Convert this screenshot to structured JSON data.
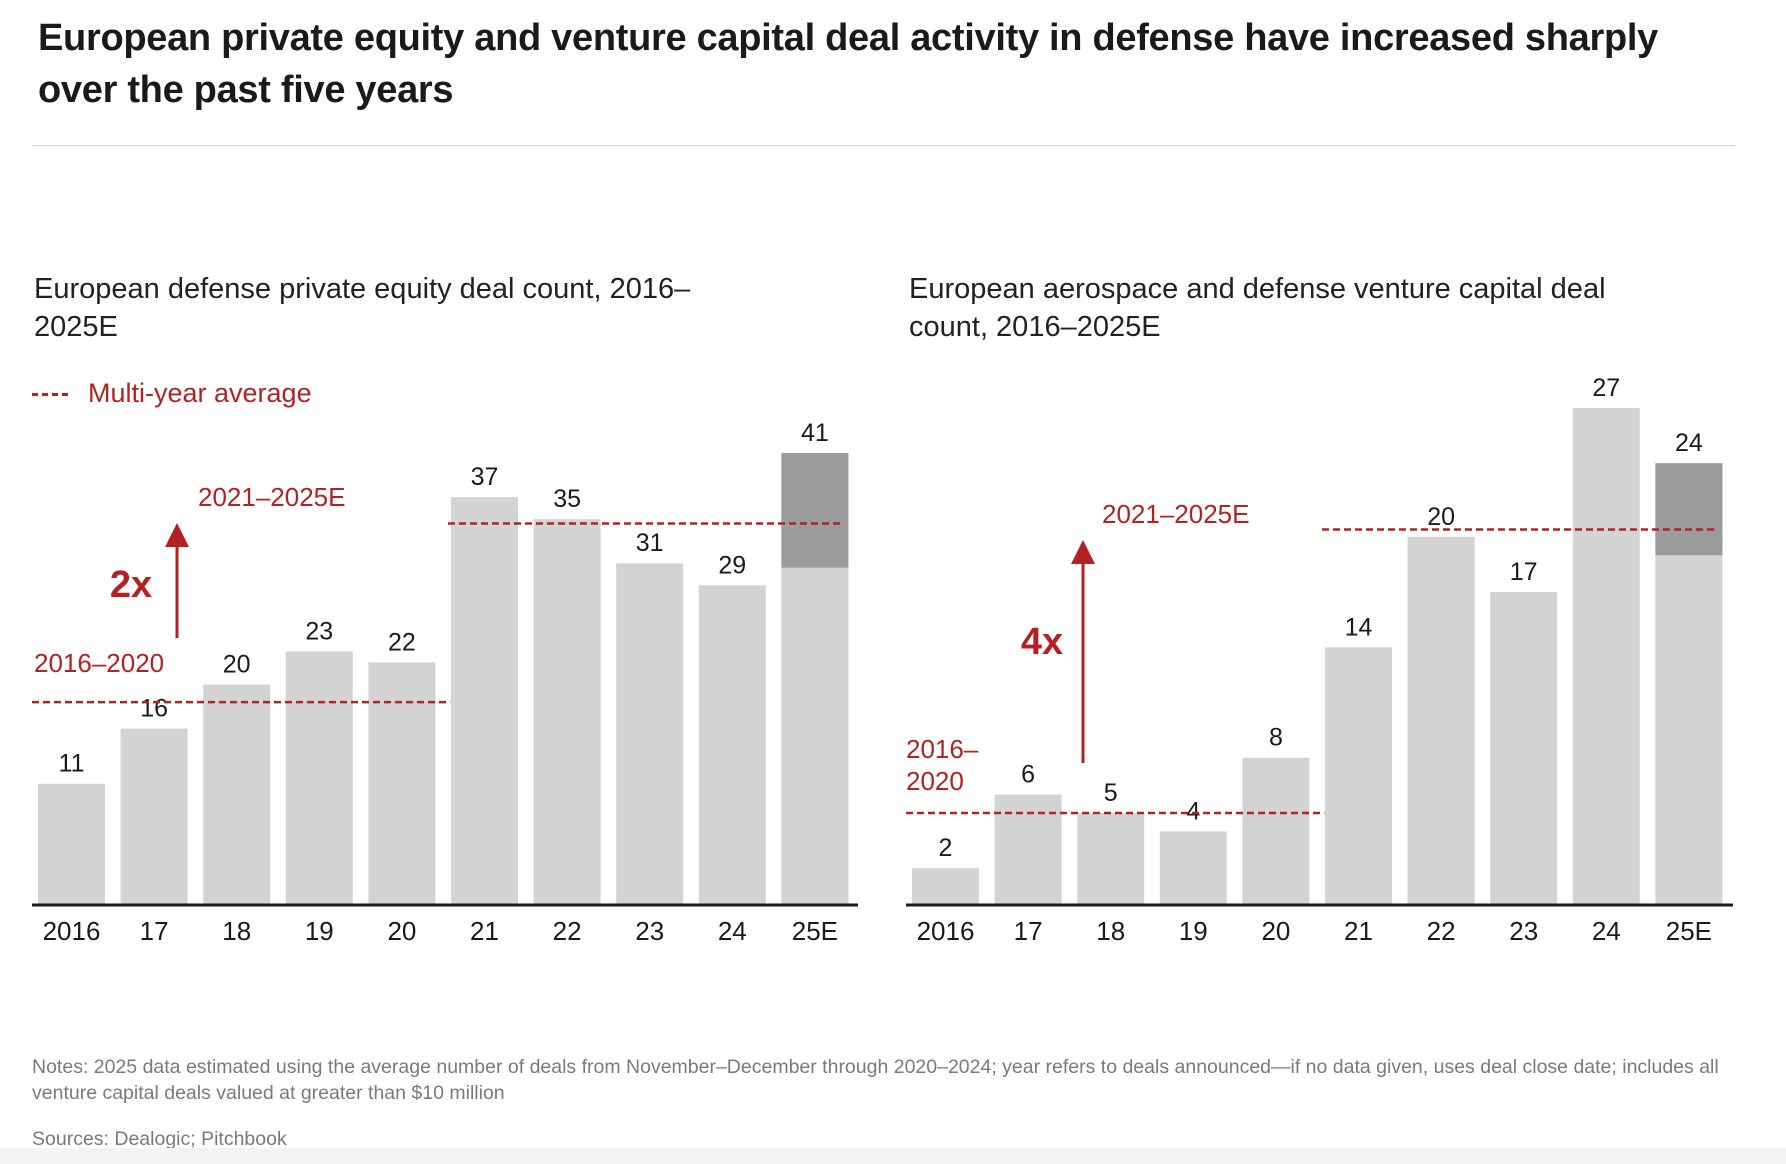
{
  "header": {
    "title": "European private equity and venture capital deal activity in defense have increased sharply over the past five years"
  },
  "legend": {
    "label": "Multi-year average",
    "color": "#b22222"
  },
  "colors": {
    "bar": "#d3d3d3",
    "bar_estimate": "#9b9b9b",
    "accent": "#b22222",
    "axis": "#1a1a1a",
    "text": "#1a1a1a"
  },
  "chart_data": [
    {
      "type": "bar",
      "title": "European defense private equity deal count, 2016–2025E",
      "categories": [
        "2016",
        "17",
        "18",
        "19",
        "20",
        "21",
        "22",
        "23",
        "24",
        "25E"
      ],
      "values": [
        11,
        16,
        20,
        23,
        22,
        37,
        35,
        31,
        29,
        41
      ],
      "estimate_portion": {
        "category": "25E",
        "from": 30.6,
        "to": 41
      },
      "data_labels": [
        "11",
        "16",
        "20",
        "23",
        "22",
        "37",
        "35",
        "31",
        "29",
        "41"
      ],
      "ylim": [
        0,
        41
      ],
      "averages": [
        {
          "label": "2016–2020",
          "value": 18.4,
          "span": [
            "2016",
            "20"
          ]
        },
        {
          "label": "2021–2025E",
          "value": 34.6,
          "span": [
            "21",
            "25E"
          ]
        }
      ],
      "annotation": {
        "label": "2x"
      },
      "grid": false
    },
    {
      "type": "bar",
      "title": "European aerospace and defense venture capital deal count, 2016–2025E",
      "categories": [
        "2016",
        "17",
        "18",
        "19",
        "20",
        "21",
        "22",
        "23",
        "24",
        "25E"
      ],
      "values": [
        2,
        6,
        5,
        4,
        8,
        14,
        20,
        17,
        27,
        24
      ],
      "estimate_portion": {
        "category": "25E",
        "from": 19,
        "to": 24
      },
      "data_labels": [
        "2",
        "6",
        "5",
        "4",
        "8",
        "14",
        "20",
        "17",
        "27",
        "24"
      ],
      "ylim": [
        0,
        27
      ],
      "averages": [
        {
          "label": "2016–\n2020",
          "value": 5,
          "span": [
            "2016",
            "20"
          ]
        },
        {
          "label": "2021–2025E",
          "value": 20.4,
          "span": [
            "21",
            "25E"
          ]
        }
      ],
      "annotation": {
        "label": "4x"
      },
      "grid": false
    }
  ],
  "footer": {
    "notes": "Notes: 2025 data estimated using the average number of deals from November–December through 2020–2024; year refers to deals announced—if no data given, uses deal close date; includes all venture capital deals valued at greater than $10 million",
    "sources": "Sources: Dealogic; Pitchbook"
  }
}
